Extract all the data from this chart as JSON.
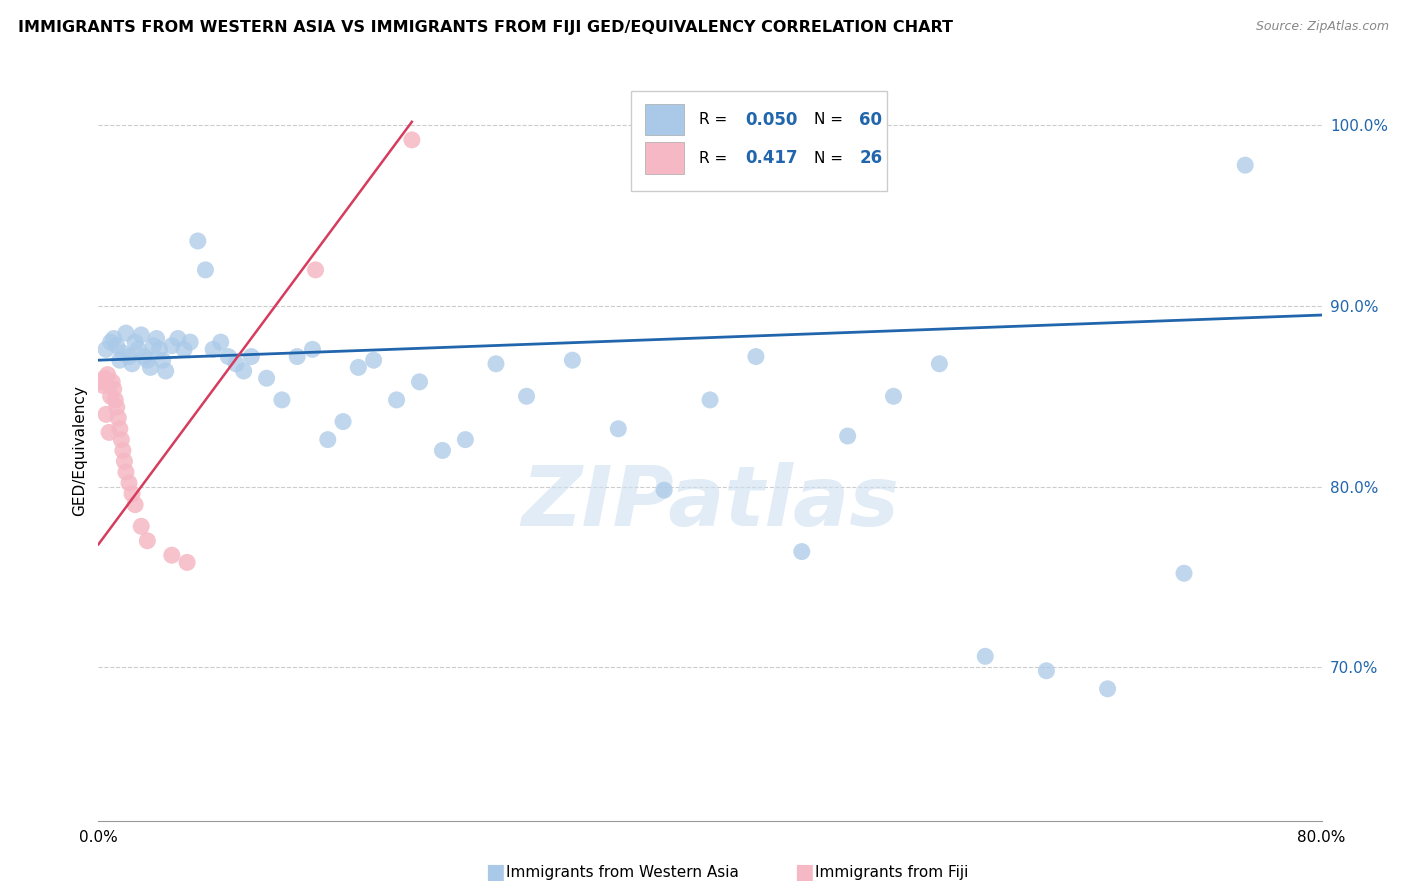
{
  "title": "IMMIGRANTS FROM WESTERN ASIA VS IMMIGRANTS FROM FIJI GED/EQUIVALENCY CORRELATION CHART",
  "source": "Source: ZipAtlas.com",
  "ylabel": "GED/Equivalency",
  "legend1_label": "Immigrants from Western Asia",
  "legend2_label": "Immigrants from Fiji",
  "R1": 0.05,
  "N1": 60,
  "R2": 0.417,
  "N2": 26,
  "blue_color": "#aac9e8",
  "pink_color": "#f5b8c4",
  "blue_line_color": "#2166ac",
  "pink_line_color": "#d63c5e",
  "xmin": 0.0,
  "xmax": 0.8,
  "ymin": 0.615,
  "ymax": 1.025,
  "yticks": [
    0.7,
    0.8,
    0.9,
    1.0
  ],
  "ytick_labels": [
    "70.0%",
    "80.0%",
    "90.0%",
    "100.0%"
  ],
  "xtick_positions": [
    0.0,
    0.1,
    0.2,
    0.3,
    0.4,
    0.5,
    0.6,
    0.7,
    0.8
  ],
  "xtick_labels": [
    "0.0%",
    "",
    "",
    "",
    "",
    "",
    "",
    "",
    "80.0%"
  ],
  "watermark": "ZIPatlas",
  "blue_x": [
    0.005,
    0.008,
    0.01,
    0.012,
    0.014,
    0.016,
    0.018,
    0.02,
    0.022,
    0.024,
    0.026,
    0.028,
    0.03,
    0.032,
    0.034,
    0.036,
    0.038,
    0.04,
    0.042,
    0.044,
    0.048,
    0.052,
    0.056,
    0.06,
    0.065,
    0.07,
    0.075,
    0.08,
    0.085,
    0.09,
    0.095,
    0.1,
    0.11,
    0.12,
    0.13,
    0.14,
    0.15,
    0.16,
    0.17,
    0.18,
    0.195,
    0.21,
    0.225,
    0.24,
    0.26,
    0.28,
    0.31,
    0.34,
    0.37,
    0.4,
    0.43,
    0.46,
    0.49,
    0.52,
    0.55,
    0.58,
    0.62,
    0.66,
    0.71,
    0.75
  ],
  "blue_y": [
    0.876,
    0.88,
    0.882,
    0.878,
    0.87,
    0.874,
    0.885,
    0.872,
    0.868,
    0.88,
    0.876,
    0.884,
    0.872,
    0.87,
    0.866,
    0.878,
    0.882,
    0.876,
    0.87,
    0.864,
    0.878,
    0.882,
    0.876,
    0.88,
    0.936,
    0.92,
    0.876,
    0.88,
    0.872,
    0.868,
    0.864,
    0.872,
    0.86,
    0.848,
    0.872,
    0.876,
    0.826,
    0.836,
    0.866,
    0.87,
    0.848,
    0.858,
    0.82,
    0.826,
    0.868,
    0.85,
    0.87,
    0.832,
    0.798,
    0.848,
    0.872,
    0.764,
    0.828,
    0.85,
    0.868,
    0.706,
    0.698,
    0.688,
    0.752,
    0.978
  ],
  "pink_x": [
    0.002,
    0.003,
    0.004,
    0.005,
    0.006,
    0.007,
    0.008,
    0.009,
    0.01,
    0.011,
    0.012,
    0.013,
    0.014,
    0.015,
    0.016,
    0.017,
    0.018,
    0.02,
    0.022,
    0.024,
    0.028,
    0.032,
    0.048,
    0.058,
    0.142,
    0.205
  ],
  "pink_y": [
    0.858,
    0.856,
    0.86,
    0.84,
    0.862,
    0.83,
    0.85,
    0.858,
    0.854,
    0.848,
    0.844,
    0.838,
    0.832,
    0.826,
    0.82,
    0.814,
    0.808,
    0.802,
    0.796,
    0.79,
    0.778,
    0.77,
    0.762,
    0.758,
    0.92,
    0.992
  ],
  "blue_line_x": [
    0.0,
    0.8
  ],
  "blue_line_y": [
    0.87,
    0.895
  ],
  "pink_line_x": [
    0.0,
    0.205
  ],
  "pink_line_y": [
    0.768,
    1.002
  ]
}
